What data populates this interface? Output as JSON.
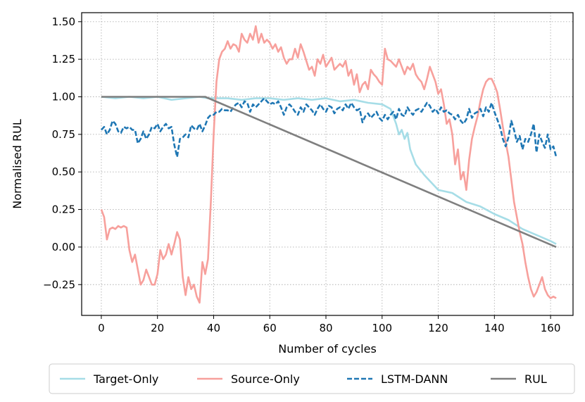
{
  "chart_data": {
    "type": "line",
    "xlabel": "Number of cycles",
    "ylabel": "Normalised RUL",
    "xlim": [
      -7,
      168
    ],
    "ylim": [
      -0.455,
      1.56
    ],
    "xticks": [
      0,
      20,
      40,
      60,
      80,
      100,
      120,
      140,
      160
    ],
    "yticks": [
      -0.25,
      0.0,
      0.25,
      0.5,
      0.75,
      1.0,
      1.25,
      1.5
    ],
    "ytick_labels": [
      "−0.25",
      "0.00",
      "0.25",
      "0.50",
      "0.75",
      "1.00",
      "1.25",
      "1.50"
    ],
    "grid": true,
    "legend_position": "bottom-outside",
    "series": [
      {
        "name": "Target-Only",
        "color": "#a6dde7",
        "dash": "solid",
        "x": [
          0,
          5,
          10,
          15,
          20,
          25,
          30,
          35,
          38,
          45,
          50,
          55,
          60,
          65,
          70,
          75,
          80,
          85,
          90,
          95,
          100,
          103,
          105,
          106,
          107,
          108,
          109,
          110,
          112,
          115,
          120,
          125,
          130,
          135,
          140,
          145,
          150,
          155,
          160,
          162
        ],
        "y": [
          1.0,
          0.99,
          1.0,
          0.99,
          1.0,
          0.98,
          0.99,
          1.0,
          0.99,
          0.99,
          0.98,
          0.99,
          0.99,
          0.98,
          0.99,
          0.98,
          0.99,
          0.97,
          0.98,
          0.96,
          0.95,
          0.92,
          0.82,
          0.75,
          0.78,
          0.72,
          0.76,
          0.65,
          0.55,
          0.48,
          0.38,
          0.36,
          0.3,
          0.27,
          0.22,
          0.18,
          0.12,
          0.08,
          0.04,
          0.02
        ]
      },
      {
        "name": "Source-Only",
        "color": "#f7a09c",
        "dash": "solid",
        "x": [
          0,
          1,
          2,
          3,
          4,
          5,
          6,
          7,
          8,
          9,
          10,
          11,
          12,
          13,
          14,
          15,
          16,
          17,
          18,
          19,
          20,
          21,
          22,
          23,
          24,
          25,
          26,
          27,
          28,
          29,
          30,
          31,
          32,
          33,
          34,
          35,
          36,
          37,
          38,
          39,
          40,
          41,
          42,
          43,
          44,
          45,
          46,
          47,
          48,
          49,
          50,
          51,
          52,
          53,
          54,
          55,
          56,
          57,
          58,
          59,
          60,
          61,
          62,
          63,
          64,
          65,
          66,
          67,
          68,
          69,
          70,
          71,
          72,
          73,
          74,
          75,
          76,
          77,
          78,
          79,
          80,
          81,
          82,
          83,
          84,
          85,
          86,
          87,
          88,
          89,
          90,
          91,
          92,
          93,
          94,
          95,
          96,
          97,
          98,
          99,
          100,
          101,
          102,
          103,
          104,
          105,
          106,
          107,
          108,
          109,
          110,
          111,
          112,
          113,
          114,
          115,
          116,
          117,
          118,
          119,
          120,
          121,
          122,
          123,
          124,
          125,
          126,
          127,
          128,
          129,
          130,
          131,
          132,
          133,
          134,
          135,
          136,
          137,
          138,
          139,
          140,
          141,
          142,
          143,
          144,
          145,
          146,
          147,
          148,
          149,
          150,
          151,
          152,
          153,
          154,
          155,
          156,
          157,
          158,
          159,
          160,
          161,
          162
        ],
        "y": [
          0.25,
          0.2,
          0.05,
          0.12,
          0.13,
          0.12,
          0.14,
          0.13,
          0.14,
          0.13,
          -0.02,
          -0.1,
          -0.05,
          -0.15,
          -0.25,
          -0.22,
          -0.15,
          -0.2,
          -0.25,
          -0.25,
          -0.18,
          -0.02,
          -0.08,
          -0.05,
          0.02,
          -0.05,
          0.02,
          0.1,
          0.05,
          -0.2,
          -0.32,
          -0.2,
          -0.28,
          -0.25,
          -0.33,
          -0.37,
          -0.1,
          -0.18,
          -0.08,
          0.3,
          0.75,
          1.1,
          1.25,
          1.3,
          1.32,
          1.37,
          1.32,
          1.35,
          1.34,
          1.3,
          1.42,
          1.38,
          1.36,
          1.42,
          1.38,
          1.47,
          1.36,
          1.42,
          1.36,
          1.38,
          1.36,
          1.32,
          1.35,
          1.3,
          1.33,
          1.26,
          1.22,
          1.25,
          1.25,
          1.32,
          1.26,
          1.35,
          1.3,
          1.24,
          1.18,
          1.2,
          1.14,
          1.25,
          1.22,
          1.28,
          1.2,
          1.23,
          1.26,
          1.18,
          1.2,
          1.22,
          1.2,
          1.24,
          1.14,
          1.18,
          1.08,
          1.15,
          1.03,
          1.08,
          1.1,
          1.05,
          1.18,
          1.15,
          1.13,
          1.1,
          1.08,
          1.32,
          1.25,
          1.24,
          1.22,
          1.2,
          1.25,
          1.2,
          1.15,
          1.2,
          1.18,
          1.22,
          1.15,
          1.12,
          1.1,
          1.05,
          1.12,
          1.2,
          1.15,
          1.1,
          1.02,
          1.05,
          0.95,
          0.82,
          0.85,
          0.75,
          0.55,
          0.65,
          0.45,
          0.5,
          0.38,
          0.58,
          0.72,
          0.8,
          0.87,
          0.97,
          1.05,
          1.1,
          1.12,
          1.12,
          1.08,
          1.03,
          0.92,
          0.8,
          0.7,
          0.6,
          0.45,
          0.3,
          0.2,
          0.1,
          0.02,
          -0.1,
          -0.2,
          -0.28,
          -0.33,
          -0.3,
          -0.25,
          -0.2,
          -0.28,
          -0.32,
          -0.34,
          -0.33,
          -0.34
        ]
      },
      {
        "name": "LSTM-DANN",
        "color": "#1f77b4",
        "dash": "dashed",
        "x": [
          0,
          1,
          2,
          3,
          4,
          5,
          6,
          7,
          8,
          9,
          10,
          11,
          12,
          13,
          14,
          15,
          16,
          17,
          18,
          19,
          20,
          21,
          22,
          23,
          24,
          25,
          26,
          27,
          28,
          29,
          30,
          31,
          32,
          33,
          34,
          35,
          36,
          37,
          38,
          39,
          40,
          41,
          42,
          43,
          44,
          45,
          46,
          47,
          48,
          49,
          50,
          51,
          52,
          53,
          54,
          55,
          56,
          57,
          58,
          59,
          60,
          61,
          62,
          63,
          64,
          65,
          66,
          67,
          68,
          69,
          70,
          71,
          72,
          73,
          74,
          75,
          76,
          77,
          78,
          79,
          80,
          81,
          82,
          83,
          84,
          85,
          86,
          87,
          88,
          89,
          90,
          91,
          92,
          93,
          94,
          95,
          96,
          97,
          98,
          99,
          100,
          101,
          102,
          103,
          104,
          105,
          106,
          107,
          108,
          109,
          110,
          111,
          112,
          113,
          114,
          115,
          116,
          117,
          118,
          119,
          120,
          121,
          122,
          123,
          124,
          125,
          126,
          127,
          128,
          129,
          130,
          131,
          132,
          133,
          134,
          135,
          136,
          137,
          138,
          139,
          140,
          141,
          142,
          143,
          144,
          145,
          146,
          147,
          148,
          149,
          150,
          151,
          152,
          153,
          154,
          155,
          156,
          157,
          158,
          159,
          160,
          161,
          162
        ],
        "y": [
          0.78,
          0.8,
          0.75,
          0.78,
          0.84,
          0.82,
          0.77,
          0.76,
          0.8,
          0.79,
          0.8,
          0.78,
          0.78,
          0.69,
          0.72,
          0.77,
          0.72,
          0.75,
          0.8,
          0.79,
          0.82,
          0.77,
          0.8,
          0.82,
          0.79,
          0.8,
          0.68,
          0.6,
          0.72,
          0.73,
          0.75,
          0.73,
          0.81,
          0.79,
          0.78,
          0.82,
          0.77,
          0.81,
          0.86,
          0.88,
          0.88,
          0.9,
          0.9,
          0.92,
          0.91,
          0.91,
          0.9,
          0.93,
          0.95,
          0.96,
          0.93,
          0.97,
          0.96,
          0.9,
          0.95,
          0.93,
          0.95,
          0.97,
          0.99,
          0.97,
          0.95,
          0.96,
          0.95,
          0.97,
          0.93,
          0.88,
          0.93,
          0.95,
          0.93,
          0.9,
          0.88,
          0.93,
          0.9,
          0.95,
          0.93,
          0.91,
          0.88,
          0.92,
          0.95,
          0.92,
          0.9,
          0.94,
          0.93,
          0.89,
          0.92,
          0.93,
          0.91,
          0.95,
          0.92,
          0.96,
          0.93,
          0.91,
          0.92,
          0.83,
          0.87,
          0.89,
          0.86,
          0.88,
          0.9,
          0.86,
          0.84,
          0.88,
          0.85,
          0.88,
          0.9,
          0.85,
          0.92,
          0.88,
          0.87,
          0.93,
          0.9,
          0.88,
          0.91,
          0.92,
          0.9,
          0.93,
          0.96,
          0.94,
          0.9,
          0.92,
          0.89,
          0.93,
          0.9,
          0.91,
          0.89,
          0.88,
          0.85,
          0.88,
          0.84,
          0.82,
          0.85,
          0.92,
          0.86,
          0.89,
          0.9,
          0.92,
          0.87,
          0.93,
          0.9,
          0.96,
          0.9,
          0.85,
          0.8,
          0.72,
          0.67,
          0.73,
          0.84,
          0.78,
          0.7,
          0.74,
          0.65,
          0.72,
          0.7,
          0.75,
          0.82,
          0.63,
          0.75,
          0.7,
          0.66,
          0.75,
          0.65,
          0.67,
          0.6
        ]
      },
      {
        "name": "RUL",
        "color": "#7f7f7f",
        "dash": "solid",
        "x": [
          0,
          37,
          162
        ],
        "y": [
          1.0,
          1.0,
          0.0
        ]
      }
    ]
  }
}
